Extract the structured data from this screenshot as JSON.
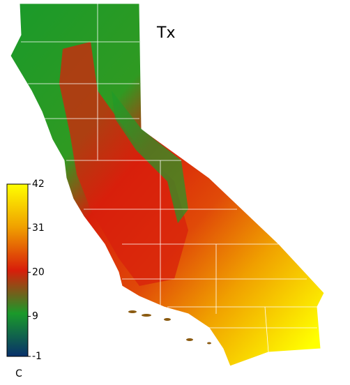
{
  "title": "Tx",
  "colorbar": {
    "label": "C",
    "lim": [
      -1,
      42
    ],
    "ticks": [
      -1,
      9,
      20,
      31,
      42
    ],
    "colors": [
      "#08306b",
      "#1a9a2a",
      "#d81e0a",
      "#f0a000",
      "#ffff00"
    ]
  }
}
